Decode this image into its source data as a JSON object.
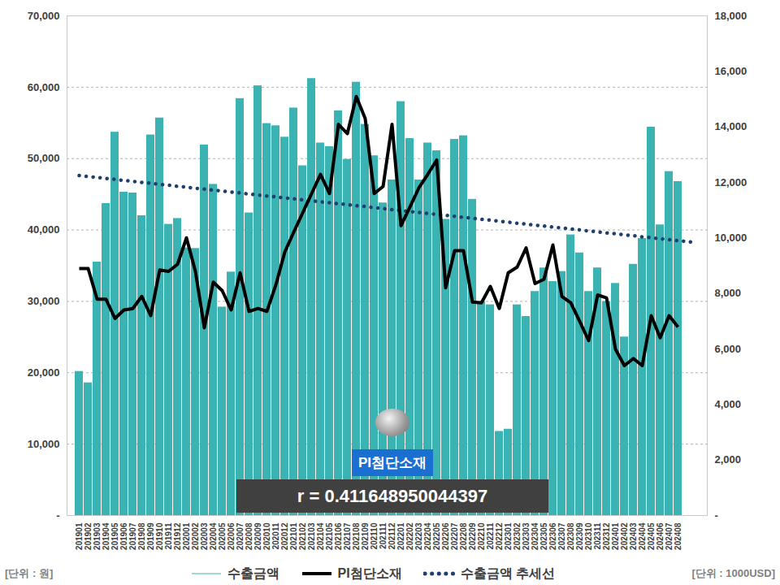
{
  "chart_data": {
    "type": "bar",
    "categories": [
      "201901",
      "201902",
      "201903",
      "201904",
      "201905",
      "201906",
      "201907",
      "201908",
      "201909",
      "201910",
      "201911",
      "201912",
      "202001",
      "202002",
      "202003",
      "202004",
      "202005",
      "202006",
      "202007",
      "202008",
      "202009",
      "202010",
      "202011",
      "202012",
      "202101",
      "202102",
      "202103",
      "202104",
      "202105",
      "202106",
      "202107",
      "202108",
      "202109",
      "202110",
      "202111",
      "202112",
      "202201",
      "202202",
      "202203",
      "202204",
      "202205",
      "202206",
      "202207",
      "202208",
      "202209",
      "202210",
      "202211",
      "202212",
      "202301",
      "202302",
      "202303",
      "202304",
      "202305",
      "202306",
      "202307",
      "202308",
      "202309",
      "202310",
      "202311",
      "202312",
      "202401",
      "202402",
      "202403",
      "202404",
      "202405",
      "202406",
      "202407",
      "202408",
      null,
      null
    ],
    "series": [
      {
        "name": "수출금액",
        "type": "bar",
        "axis": "y2",
        "color": "#3bb3b3",
        "values": [
          5190,
          4780,
          9130,
          11240,
          13810,
          11650,
          11620,
          10800,
          13710,
          14320,
          10490,
          10700,
          9640,
          9620,
          13350,
          11930,
          7510,
          8770,
          15020,
          10900,
          15480,
          14120,
          14040,
          13630,
          14680,
          12600,
          15740,
          13420,
          13290,
          14580,
          12830,
          15610,
          14090,
          12960,
          11260,
          12090,
          14910,
          13580,
          12090,
          13420,
          13140,
          10670,
          13550,
          13680,
          11390,
          7710,
          7590,
          3030,
          3110,
          7590,
          7170,
          8070,
          8920,
          8430,
          8790,
          10110,
          9460,
          8070,
          8920,
          7710,
          8360,
          6430,
          9050,
          9980,
          13990,
          10470,
          12390,
          12030,
          null,
          null
        ]
      },
      {
        "name": "PI첨단소재",
        "type": "line",
        "line_style": "solid",
        "color": "#000000",
        "values": [
          34600,
          34600,
          30300,
          30300,
          27600,
          28800,
          29000,
          30700,
          28000,
          34400,
          34200,
          35200,
          38900,
          34200,
          26300,
          32700,
          31500,
          28800,
          34000,
          28600,
          29000,
          28600,
          32300,
          36900,
          39700,
          42400,
          45100,
          47800,
          45100,
          54800,
          53500,
          58700,
          55600,
          45100,
          46100,
          54800,
          40600,
          43200,
          45900,
          47800,
          49800,
          31900,
          37100,
          37100,
          29900,
          29800,
          32100,
          29000,
          34000,
          34800,
          37500,
          32500,
          33100,
          37900,
          30700,
          29800,
          27200,
          24500,
          30900,
          30500,
          23300,
          21000,
          22000,
          21000,
          28000,
          24900,
          28000,
          26400,
          null,
          null
        ]
      },
      {
        "name": "수출금액 추세선",
        "type": "line",
        "line_style": "dotted",
        "axis": "y2",
        "color": "#1f3f6f",
        "values": [
          12250,
          12210,
          12180,
          12140,
          12110,
          12070,
          12040,
          12000,
          11970,
          11930,
          11900,
          11860,
          11830,
          11790,
          11760,
          11720,
          11690,
          11650,
          11620,
          11580,
          11550,
          11510,
          11480,
          11440,
          11410,
          11370,
          11340,
          11300,
          11270,
          11230,
          11200,
          11160,
          11130,
          11090,
          11060,
          11020,
          10990,
          10950,
          10920,
          10880,
          10850,
          10810,
          10780,
          10740,
          10710,
          10670,
          10640,
          10600,
          10570,
          10530,
          10500,
          10460,
          10430,
          10390,
          10360,
          10320,
          10290,
          10250,
          10220,
          10180,
          10150,
          10110,
          10080,
          10040,
          10010,
          9970,
          9940,
          9900,
          9870,
          9830
        ]
      }
    ],
    "ylim": [
      0,
      70000
    ],
    "yticks": [
      {
        "value": 0,
        "label": "-"
      },
      {
        "value": 10000,
        "label": "10,000"
      },
      {
        "value": 20000,
        "label": "20,000"
      },
      {
        "value": 30000,
        "label": "30,000"
      },
      {
        "value": 40000,
        "label": "40,000"
      },
      {
        "value": 50000,
        "label": "50,000"
      },
      {
        "value": 60000,
        "label": "60,000"
      },
      {
        "value": 70000,
        "label": "70,000"
      }
    ],
    "y2lim": [
      0,
      18000
    ],
    "y2ticks": [
      {
        "value": 0,
        "label": "-"
      },
      {
        "value": 2000,
        "label": "2,000"
      },
      {
        "value": 4000,
        "label": "4,000"
      },
      {
        "value": 6000,
        "label": "6,000"
      },
      {
        "value": 8000,
        "label": "8,000"
      },
      {
        "value": 10000,
        "label": "10,000"
      },
      {
        "value": 12000,
        "label": "12,000"
      },
      {
        "value": 14000,
        "label": "14,000"
      },
      {
        "value": 16000,
        "label": "16,000"
      },
      {
        "value": 18000,
        "label": "18,000"
      }
    ],
    "ylabel": "[단위 : 원]",
    "y2label": "[단위 : 1000USD]",
    "annotations": [
      "PI첨단소재",
      "r = 0.411648950044397"
    ],
    "grid": true,
    "legend": "bottom"
  }
}
